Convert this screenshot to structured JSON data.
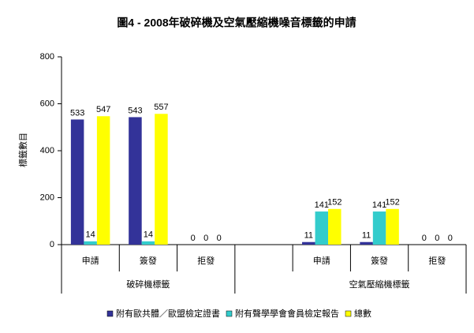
{
  "chart_data": {
    "type": "bar",
    "title": "圖4 - 2008年破碎機及空氣壓縮機噪音標籤的申請",
    "y_label": "標籤數目",
    "categories": [
      "申請",
      "簽發",
      "拒發",
      null,
      "申請",
      "簽發",
      "拒發"
    ],
    "group_labels": [
      "破碎機標籤",
      "空氣壓縮機標籤"
    ],
    "series": [
      {
        "name": "附有歐共體／歐盟檢定證書",
        "color": "#333399",
        "values": [
          533,
          543,
          0,
          null,
          11,
          11,
          0
        ]
      },
      {
        "name": "附有聲學學會會員檢定報告",
        "color": "#33CCCC",
        "values": [
          14,
          14,
          0,
          null,
          141,
          141,
          0
        ]
      },
      {
        "name": "總數",
        "color": "#FFFF00",
        "values": [
          547,
          557,
          0,
          null,
          152,
          152,
          0
        ]
      }
    ],
    "ylim": [
      0,
      800
    ],
    "yticks": [
      0,
      200,
      400,
      600,
      800
    ],
    "legend": "bottom"
  }
}
